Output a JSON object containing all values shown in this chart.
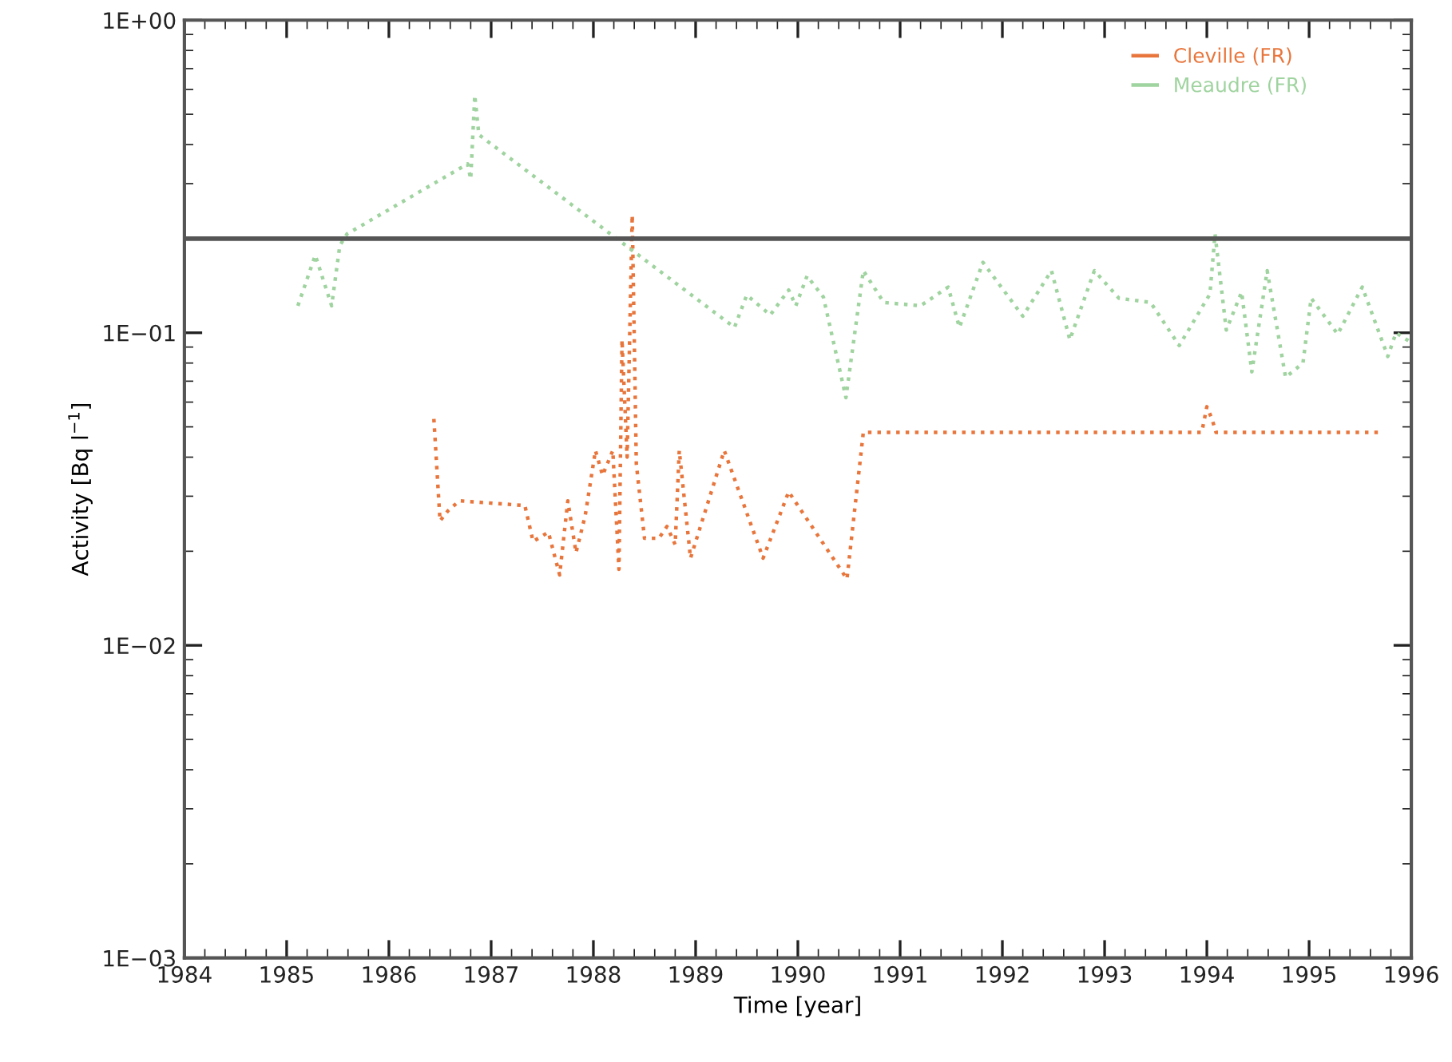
{
  "chart_data": {
    "type": "line",
    "xlabel": "Time [year]",
    "ylabel": "Activity [Bq l$^{−1}$]",
    "log": "y",
    "xlim": [
      1984,
      1996
    ],
    "xticks": [
      1984,
      1985,
      1986,
      1987,
      1988,
      1989,
      1990,
      1991,
      1992,
      1993,
      1994,
      1995,
      1996
    ],
    "ylim": [
      0.001,
      1
    ],
    "yticks": [
      {
        "value": 0.001,
        "label": "1E−03"
      },
      {
        "value": 0.01,
        "label": "1E−02"
      },
      {
        "value": 0.1,
        "label": "1E−01"
      },
      {
        "value": 1,
        "label": "1E+00"
      }
    ],
    "grid": false,
    "legend": "top right",
    "line_style": "dotted",
    "marker": "none",
    "ref_lines": [
      {
        "axis": "y",
        "value": 0.2,
        "color": "#555555"
      }
    ],
    "series": [
      {
        "name": "Cleville (FR)",
        "color": "#e8763c",
        "x": [
          1986.44,
          1986.5,
          1986.58,
          1986.69,
          1987.33,
          1987.41,
          1987.56,
          1987.67,
          1987.75,
          1987.83,
          1987.92,
          1988.02,
          1988.09,
          1988.19,
          1988.25,
          1988.28,
          1988.33,
          1988.38,
          1988.42,
          1988.5,
          1988.64,
          1988.72,
          1988.8,
          1988.84,
          1988.95,
          1989.28,
          1989.66,
          1989.91,
          1990.48,
          1990.64,
          1993.95,
          1994.0,
          1994.05,
          1994.09,
          1995.69
        ],
        "values": [
          0.053,
          0.025,
          0.027,
          0.029,
          0.028,
          0.0215,
          0.023,
          0.0168,
          0.029,
          0.0198,
          0.026,
          0.042,
          0.035,
          0.042,
          0.0175,
          0.095,
          0.04,
          0.238,
          0.038,
          0.022,
          0.022,
          0.024,
          0.021,
          0.042,
          0.019,
          0.042,
          0.019,
          0.031,
          0.0163,
          0.048,
          0.048,
          0.058,
          0.053,
          0.048,
          0.048
        ]
      },
      {
        "name": "Meaudre (FR)",
        "color": "#9fd39f",
        "x": [
          1985.11,
          1985.28,
          1985.44,
          1985.52,
          1985.59,
          1986.77,
          1986.8,
          1986.84,
          1986.88,
          1989.38,
          1989.5,
          1989.73,
          1989.91,
          1989.98,
          1990.09,
          1990.25,
          1990.47,
          1990.64,
          1990.84,
          1991.2,
          1991.47,
          1991.58,
          1991.81,
          1992.2,
          1992.48,
          1992.66,
          1992.9,
          1993.14,
          1993.45,
          1993.73,
          1994.03,
          1994.08,
          1994.19,
          1994.34,
          1994.44,
          1994.59,
          1994.77,
          1994.94,
          1995.02,
          1995.28,
          1995.52,
          1995.77,
          1995.85,
          1996.0
        ],
        "values": [
          0.122,
          0.177,
          0.122,
          0.19,
          0.207,
          0.347,
          0.31,
          0.575,
          0.43,
          0.104,
          0.132,
          0.114,
          0.137,
          0.122,
          0.152,
          0.13,
          0.062,
          0.158,
          0.125,
          0.122,
          0.14,
          0.104,
          0.168,
          0.113,
          0.158,
          0.095,
          0.158,
          0.129,
          0.125,
          0.091,
          0.133,
          0.207,
          0.102,
          0.135,
          0.075,
          0.158,
          0.072,
          0.08,
          0.129,
          0.099,
          0.14,
          0.084,
          0.1,
          0.093
        ]
      }
    ]
  }
}
